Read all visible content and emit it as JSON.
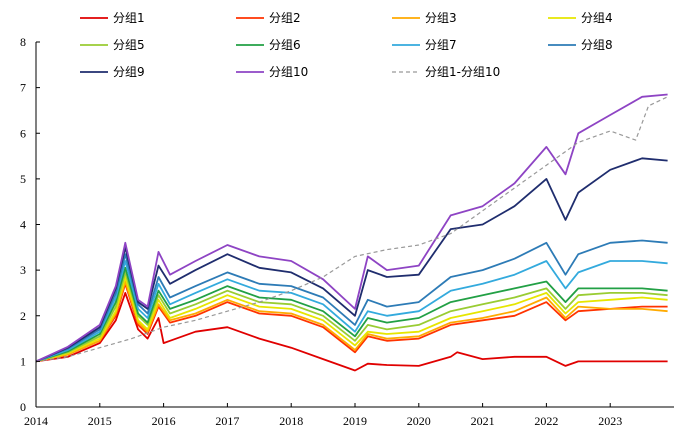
{
  "chart_data": {
    "type": "line",
    "title": "",
    "xlabel": "",
    "ylabel": "",
    "xlim": [
      2014,
      2024
    ],
    "ylim": [
      0,
      8
    ],
    "x_ticks": [
      "2014",
      "2015",
      "2016",
      "2017",
      "2018",
      "2019",
      "2020",
      "2021",
      "2022",
      "2023"
    ],
    "y_ticks": [
      "0",
      "1",
      "2",
      "3",
      "4",
      "5",
      "6",
      "7",
      "8"
    ],
    "grid": false,
    "legend_position": "top",
    "series": [
      {
        "name": "分组1",
        "color": "#e00000",
        "dash": false,
        "x": [
          2014,
          2014.5,
          2015,
          2015.25,
          2015.4,
          2015.6,
          2015.75,
          2015.92,
          2016.0,
          2016.1,
          2016.5,
          2017.0,
          2017.5,
          2018.0,
          2018.5,
          2019.0,
          2019.2,
          2019.5,
          2020.0,
          2020.5,
          2020.6,
          2021.0,
          2021.5,
          2022.0,
          2022.3,
          2022.5,
          2023.0,
          2023.5,
          2023.9
        ],
        "y": [
          1.0,
          1.1,
          1.4,
          1.9,
          2.5,
          1.7,
          1.5,
          1.95,
          1.4,
          1.45,
          1.65,
          1.75,
          1.5,
          1.3,
          1.05,
          0.8,
          0.95,
          0.92,
          0.9,
          1.1,
          1.2,
          1.05,
          1.1,
          1.1,
          0.9,
          1.0,
          1.0,
          1.0,
          1.0
        ]
      },
      {
        "name": "分组2",
        "color": "#ff3300",
        "dash": false,
        "x": [
          2014,
          2014.5,
          2015,
          2015.25,
          2015.4,
          2015.6,
          2015.75,
          2015.92,
          2016.1,
          2016.5,
          2017.0,
          2017.5,
          2018.0,
          2018.5,
          2019.0,
          2019.2,
          2019.5,
          2020.0,
          2020.5,
          2021.0,
          2021.5,
          2022.0,
          2022.3,
          2022.5,
          2023.0,
          2023.5,
          2023.9
        ],
        "y": [
          1.0,
          1.15,
          1.45,
          2.0,
          2.7,
          1.8,
          1.6,
          2.2,
          1.85,
          2.0,
          2.3,
          2.05,
          2.0,
          1.75,
          1.2,
          1.55,
          1.45,
          1.5,
          1.8,
          1.9,
          2.0,
          2.3,
          1.9,
          2.1,
          2.15,
          2.2,
          2.2
        ]
      },
      {
        "name": "分组3",
        "color": "#ffaa00",
        "dash": false,
        "x": [
          2014,
          2014.5,
          2015,
          2015.25,
          2015.4,
          2015.6,
          2015.75,
          2015.92,
          2016.1,
          2016.5,
          2017.0,
          2017.5,
          2018.0,
          2018.5,
          2019.0,
          2019.2,
          2019.5,
          2020.0,
          2020.5,
          2021.0,
          2021.5,
          2022.0,
          2022.3,
          2022.5,
          2023.0,
          2023.5,
          2023.9
        ],
        "y": [
          1.0,
          1.15,
          1.45,
          2.05,
          2.75,
          1.85,
          1.65,
          2.25,
          1.9,
          2.05,
          2.35,
          2.1,
          2.05,
          1.8,
          1.25,
          1.6,
          1.5,
          1.55,
          1.85,
          1.95,
          2.1,
          2.4,
          1.95,
          2.2,
          2.15,
          2.15,
          2.1
        ]
      },
      {
        "name": "分组4",
        "color": "#e6e600",
        "dash": false,
        "x": [
          2014,
          2014.5,
          2015,
          2015.25,
          2015.4,
          2015.6,
          2015.75,
          2015.92,
          2016.1,
          2016.5,
          2017.0,
          2017.5,
          2018.0,
          2018.5,
          2019.0,
          2019.2,
          2019.5,
          2020.0,
          2020.5,
          2021.0,
          2021.5,
          2022.0,
          2022.3,
          2022.5,
          2023.0,
          2023.5,
          2023.9
        ],
        "y": [
          1.0,
          1.18,
          1.5,
          2.1,
          2.85,
          1.9,
          1.7,
          2.35,
          1.95,
          2.15,
          2.45,
          2.2,
          2.15,
          1.9,
          1.35,
          1.65,
          1.6,
          1.65,
          1.95,
          2.1,
          2.25,
          2.5,
          2.05,
          2.3,
          2.35,
          2.4,
          2.35
        ]
      },
      {
        "name": "分组5",
        "color": "#99cc33",
        "dash": false,
        "x": [
          2014,
          2014.5,
          2015,
          2015.25,
          2015.4,
          2015.6,
          2015.75,
          2015.92,
          2016.1,
          2016.5,
          2017.0,
          2017.5,
          2018.0,
          2018.5,
          2019.0,
          2019.2,
          2019.5,
          2020.0,
          2020.5,
          2021.0,
          2021.5,
          2022.0,
          2022.3,
          2022.5,
          2023.0,
          2023.5,
          2023.9
        ],
        "y": [
          1.0,
          1.2,
          1.55,
          2.2,
          2.95,
          2.0,
          1.8,
          2.45,
          2.05,
          2.25,
          2.55,
          2.3,
          2.25,
          2.0,
          1.45,
          1.8,
          1.7,
          1.8,
          2.1,
          2.25,
          2.4,
          2.6,
          2.15,
          2.45,
          2.5,
          2.5,
          2.45
        ]
      },
      {
        "name": "分组6",
        "color": "#22a045",
        "dash": false,
        "x": [
          2014,
          2014.5,
          2015,
          2015.25,
          2015.4,
          2015.6,
          2015.75,
          2015.92,
          2016.1,
          2016.5,
          2017.0,
          2017.5,
          2018.0,
          2018.5,
          2019.0,
          2019.2,
          2019.5,
          2020.0,
          2020.5,
          2021.0,
          2021.5,
          2022.0,
          2022.3,
          2022.5,
          2023.0,
          2023.5,
          2023.9
        ],
        "y": [
          1.0,
          1.22,
          1.6,
          2.3,
          3.05,
          2.05,
          1.85,
          2.55,
          2.15,
          2.35,
          2.65,
          2.4,
          2.35,
          2.1,
          1.55,
          1.95,
          1.85,
          1.95,
          2.3,
          2.45,
          2.6,
          2.75,
          2.3,
          2.6,
          2.6,
          2.6,
          2.55
        ]
      },
      {
        "name": "分组7",
        "color": "#33aadd",
        "dash": false,
        "x": [
          2014,
          2014.5,
          2015,
          2015.25,
          2015.4,
          2015.6,
          2015.75,
          2015.92,
          2016.1,
          2016.5,
          2017.0,
          2017.5,
          2018.0,
          2018.5,
          2019.0,
          2019.2,
          2019.5,
          2020.0,
          2020.5,
          2021.0,
          2021.5,
          2022.0,
          2022.3,
          2022.5,
          2023.0,
          2023.5,
          2023.9
        ],
        "y": [
          1.0,
          1.25,
          1.65,
          2.4,
          3.2,
          2.15,
          1.95,
          2.7,
          2.25,
          2.5,
          2.8,
          2.55,
          2.5,
          2.25,
          1.65,
          2.1,
          2.0,
          2.1,
          2.55,
          2.7,
          2.9,
          3.2,
          2.6,
          2.95,
          3.2,
          3.2,
          3.15
        ]
      },
      {
        "name": "分组8",
        "color": "#2d7bb6",
        "dash": false,
        "x": [
          2014,
          2014.5,
          2015,
          2015.25,
          2015.4,
          2015.6,
          2015.75,
          2015.92,
          2016.1,
          2016.5,
          2017.0,
          2017.5,
          2018.0,
          2018.5,
          2019.0,
          2019.2,
          2019.5,
          2020.0,
          2020.5,
          2021.0,
          2021.5,
          2022.0,
          2022.3,
          2022.5,
          2023.0,
          2023.5,
          2023.9
        ],
        "y": [
          1.0,
          1.28,
          1.7,
          2.5,
          3.35,
          2.25,
          2.05,
          2.85,
          2.4,
          2.65,
          2.95,
          2.7,
          2.65,
          2.4,
          1.8,
          2.35,
          2.2,
          2.3,
          2.85,
          3.0,
          3.25,
          3.6,
          2.9,
          3.35,
          3.6,
          3.65,
          3.6
        ]
      },
      {
        "name": "分组9",
        "color": "#1f2d6e",
        "dash": false,
        "x": [
          2014,
          2014.5,
          2015,
          2015.25,
          2015.4,
          2015.6,
          2015.75,
          2015.92,
          2016.1,
          2016.5,
          2017.0,
          2017.5,
          2018.0,
          2018.5,
          2019.0,
          2019.2,
          2019.5,
          2020.0,
          2020.5,
          2021.0,
          2021.5,
          2022.0,
          2022.3,
          2022.5,
          2023.0,
          2023.5,
          2023.9
        ],
        "y": [
          1.0,
          1.3,
          1.75,
          2.6,
          3.5,
          2.3,
          2.15,
          3.1,
          2.7,
          3.0,
          3.35,
          3.05,
          2.95,
          2.6,
          2.0,
          3.0,
          2.85,
          2.9,
          3.9,
          4.0,
          4.4,
          5.0,
          4.1,
          4.7,
          5.2,
          5.45,
          5.4
        ]
      },
      {
        "name": "分组10",
        "color": "#8e44c4",
        "dash": false,
        "x": [
          2014,
          2014.5,
          2015,
          2015.25,
          2015.4,
          2015.6,
          2015.75,
          2015.92,
          2016.1,
          2016.5,
          2017.0,
          2017.5,
          2018.0,
          2018.5,
          2019.0,
          2019.2,
          2019.5,
          2020.0,
          2020.5,
          2021.0,
          2021.5,
          2022.0,
          2022.3,
          2022.5,
          2023.0,
          2023.5,
          2023.9
        ],
        "y": [
          1.0,
          1.32,
          1.8,
          2.65,
          3.6,
          2.35,
          2.2,
          3.4,
          2.9,
          3.2,
          3.55,
          3.3,
          3.2,
          2.8,
          2.15,
          3.3,
          3.0,
          3.1,
          4.2,
          4.4,
          4.9,
          5.7,
          5.1,
          6.0,
          6.4,
          6.8,
          6.85
        ]
      },
      {
        "name": "分组1-分组10",
        "color": "#999999",
        "dash": true,
        "x": [
          2014,
          2014.5,
          2015,
          2015.5,
          2016.0,
          2016.5,
          2017.0,
          2017.5,
          2018.0,
          2018.5,
          2019.0,
          2019.5,
          2020.0,
          2020.5,
          2021.0,
          2021.5,
          2022.0,
          2022.5,
          2023.0,
          2023.4,
          2023.6,
          2023.9
        ],
        "y": [
          1.0,
          1.1,
          1.3,
          1.5,
          1.75,
          1.9,
          2.1,
          2.3,
          2.55,
          2.85,
          3.3,
          3.45,
          3.55,
          3.8,
          4.3,
          4.8,
          5.3,
          5.8,
          6.05,
          5.85,
          6.6,
          6.8
        ]
      }
    ]
  }
}
